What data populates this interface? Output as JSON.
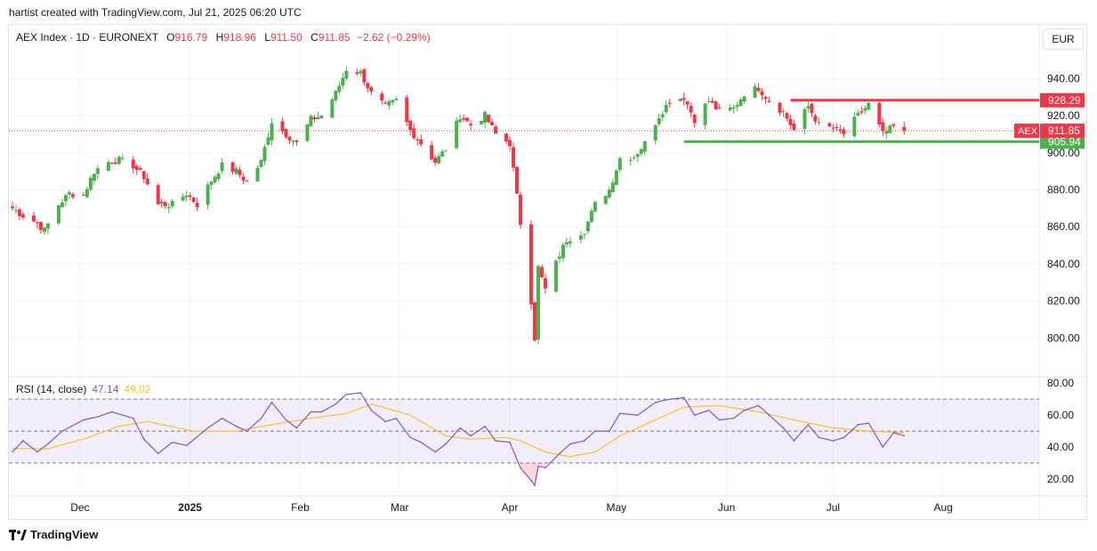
{
  "caption": "hartist created with TradingView.com, Jul 21, 2025 06:20 UTC",
  "legend": {
    "symbol": "AEX Index · 1D · EURONEXT",
    "o_label": "O",
    "o_value": "916.79",
    "h_label": "H",
    "h_value": "918.96",
    "l_label": "L",
    "l_value": "911.50",
    "c_label": "C",
    "c_value": "911.85",
    "change": "−2.62 (−0.29%)"
  },
  "rsi_legend": {
    "label": "RSI (14, close)",
    "rsi": "47.14",
    "ma": "49.02"
  },
  "currency_button": "EUR",
  "footer": {
    "logo_text": "TradingView",
    "logo_icon": "tradingview-logo-icon"
  },
  "colors": {
    "up": "#4caf50",
    "down": "#f23645",
    "rsi": "#7e57c2",
    "rsi_ma": "#f7c428",
    "resistance": "#f23645",
    "support": "#4caf50",
    "rsi_band": "#7e57c2"
  },
  "chart_data": [
    {
      "type": "candlestick",
      "title": "AEX Index · 1D · EURONEXT",
      "ylim": [
        780,
        950
      ],
      "y_ticks": [
        "940.00",
        "920.00",
        "900.00",
        "880.00",
        "860.00",
        "840.00",
        "820.00",
        "800.00"
      ],
      "x_ticks": [
        "Dec",
        "2025",
        "Feb",
        "Mar",
        "Apr",
        "May",
        "Jun",
        "Jul",
        "Aug"
      ],
      "last_price": {
        "label": "AEX",
        "value": 911.85,
        "text": "911.85"
      },
      "horizontal_levels": [
        {
          "value": 928.29,
          "text": "928.29",
          "role": "resistance",
          "from": "2025-06-19"
        },
        {
          "value": 905.94,
          "text": "905.94",
          "role": "support",
          "from": "2025-05-20"
        }
      ],
      "series": [
        {
          "name": "AEX",
          "close_path": [
            {
              "date": "2024-11-12",
              "close": 870
            },
            {
              "date": "2024-11-15",
              "close": 866
            },
            {
              "date": "2024-11-19",
              "close": 862
            },
            {
              "date": "2024-11-21",
              "close": 858
            },
            {
              "date": "2024-11-25",
              "close": 872
            },
            {
              "date": "2024-11-28",
              "close": 878
            },
            {
              "date": "2024-12-02",
              "close": 877
            },
            {
              "date": "2024-12-05",
              "close": 890
            },
            {
              "date": "2024-12-09",
              "close": 895
            },
            {
              "date": "2024-12-12",
              "close": 896
            },
            {
              "date": "2024-12-16",
              "close": 893
            },
            {
              "date": "2024-12-19",
              "close": 887
            },
            {
              "date": "2024-12-23",
              "close": 872
            },
            {
              "date": "2024-12-27",
              "close": 872
            },
            {
              "date": "2024-12-31",
              "close": 878
            },
            {
              "date": "2025-01-03",
              "close": 872
            },
            {
              "date": "2025-01-07",
              "close": 885
            },
            {
              "date": "2025-01-10",
              "close": 893
            },
            {
              "date": "2025-01-14",
              "close": 890
            },
            {
              "date": "2025-01-17",
              "close": 884
            },
            {
              "date": "2025-01-21",
              "close": 895
            },
            {
              "date": "2025-01-24",
              "close": 917
            },
            {
              "date": "2025-01-28",
              "close": 910
            },
            {
              "date": "2025-01-31",
              "close": 905
            },
            {
              "date": "2025-02-04",
              "close": 918
            },
            {
              "date": "2025-02-07",
              "close": 920
            },
            {
              "date": "2025-02-11",
              "close": 932
            },
            {
              "date": "2025-02-14",
              "close": 945
            },
            {
              "date": "2025-02-18",
              "close": 943
            },
            {
              "date": "2025-02-21",
              "close": 932
            },
            {
              "date": "2025-02-25",
              "close": 925
            },
            {
              "date": "2025-02-28",
              "close": 928
            },
            {
              "date": "2025-03-04",
              "close": 912
            },
            {
              "date": "2025-03-07",
              "close": 905
            },
            {
              "date": "2025-03-11",
              "close": 895
            },
            {
              "date": "2025-03-14",
              "close": 902
            },
            {
              "date": "2025-03-18",
              "close": 920
            },
            {
              "date": "2025-03-21",
              "close": 915
            },
            {
              "date": "2025-03-25",
              "close": 920
            },
            {
              "date": "2025-03-28",
              "close": 910
            },
            {
              "date": "2025-04-01",
              "close": 905
            },
            {
              "date": "2025-04-04",
              "close": 862
            },
            {
              "date": "2025-04-07",
              "close": 820
            },
            {
              "date": "2025-04-08",
              "close": 800
            },
            {
              "date": "2025-04-09",
              "close": 838
            },
            {
              "date": "2025-04-11",
              "close": 826
            },
            {
              "date": "2025-04-15",
              "close": 845
            },
            {
              "date": "2025-04-17",
              "close": 853
            },
            {
              "date": "2025-04-22",
              "close": 858
            },
            {
              "date": "2025-04-25",
              "close": 872
            },
            {
              "date": "2025-04-29",
              "close": 880
            },
            {
              "date": "2025-05-02",
              "close": 897
            },
            {
              "date": "2025-05-06",
              "close": 898
            },
            {
              "date": "2025-05-09",
              "close": 905
            },
            {
              "date": "2025-05-13",
              "close": 920
            },
            {
              "date": "2025-05-16",
              "close": 928
            },
            {
              "date": "2025-05-20",
              "close": 930
            },
            {
              "date": "2025-05-23",
              "close": 918
            },
            {
              "date": "2025-05-27",
              "close": 928
            },
            {
              "date": "2025-05-30",
              "close": 922
            },
            {
              "date": "2025-06-03",
              "close": 924
            },
            {
              "date": "2025-06-06",
              "close": 932
            },
            {
              "date": "2025-06-10",
              "close": 935
            },
            {
              "date": "2025-06-13",
              "close": 928
            },
            {
              "date": "2025-06-17",
              "close": 922
            },
            {
              "date": "2025-06-20",
              "close": 912
            },
            {
              "date": "2025-06-24",
              "close": 925
            },
            {
              "date": "2025-06-27",
              "close": 915
            },
            {
              "date": "2025-07-01",
              "close": 913
            },
            {
              "date": "2025-07-04",
              "close": 910
            },
            {
              "date": "2025-07-08",
              "close": 920
            },
            {
              "date": "2025-07-11",
              "close": 926
            },
            {
              "date": "2025-07-15",
              "close": 910
            },
            {
              "date": "2025-07-18",
              "close": 914
            },
            {
              "date": "2025-07-21",
              "close": 911.85
            }
          ]
        }
      ]
    },
    {
      "type": "line",
      "title": "RSI (14, close)",
      "ylim": [
        10,
        80
      ],
      "y_ticks": [
        "80.00",
        "60.00",
        "40.00",
        "20.00"
      ],
      "bands": {
        "upper": 70,
        "middle": 50,
        "lower": 30
      },
      "series": [
        {
          "name": "RSI",
          "points": [
            {
              "date": "2024-11-12",
              "value": 37
            },
            {
              "date": "2024-11-15",
              "value": 44
            },
            {
              "date": "2024-11-19",
              "value": 37
            },
            {
              "date": "2024-11-22",
              "value": 42
            },
            {
              "date": "2024-11-26",
              "value": 50
            },
            {
              "date": "2024-12-02",
              "value": 57
            },
            {
              "date": "2024-12-06",
              "value": 59
            },
            {
              "date": "2024-12-10",
              "value": 62
            },
            {
              "date": "2024-12-16",
              "value": 58
            },
            {
              "date": "2024-12-19",
              "value": 45
            },
            {
              "date": "2024-12-23",
              "value": 36
            },
            {
              "date": "2024-12-27",
              "value": 43
            },
            {
              "date": "2024-12-31",
              "value": 41
            },
            {
              "date": "2025-01-06",
              "value": 52
            },
            {
              "date": "2025-01-10",
              "value": 58
            },
            {
              "date": "2025-01-14",
              "value": 53
            },
            {
              "date": "2025-01-17",
              "value": 50
            },
            {
              "date": "2025-01-21",
              "value": 58
            },
            {
              "date": "2025-01-24",
              "value": 68
            },
            {
              "date": "2025-01-28",
              "value": 57
            },
            {
              "date": "2025-01-31",
              "value": 52
            },
            {
              "date": "2025-02-04",
              "value": 62
            },
            {
              "date": "2025-02-07",
              "value": 62
            },
            {
              "date": "2025-02-11",
              "value": 67
            },
            {
              "date": "2025-02-14",
              "value": 73
            },
            {
              "date": "2025-02-18",
              "value": 74
            },
            {
              "date": "2025-02-21",
              "value": 63
            },
            {
              "date": "2025-02-25",
              "value": 56
            },
            {
              "date": "2025-02-28",
              "value": 58
            },
            {
              "date": "2025-03-04",
              "value": 46
            },
            {
              "date": "2025-03-07",
              "value": 43
            },
            {
              "date": "2025-03-11",
              "value": 37
            },
            {
              "date": "2025-03-14",
              "value": 42
            },
            {
              "date": "2025-03-18",
              "value": 52
            },
            {
              "date": "2025-03-21",
              "value": 47
            },
            {
              "date": "2025-03-25",
              "value": 53
            },
            {
              "date": "2025-03-28",
              "value": 44
            },
            {
              "date": "2025-04-01",
              "value": 43
            },
            {
              "date": "2025-04-04",
              "value": 27
            },
            {
              "date": "2025-04-07",
              "value": 19
            },
            {
              "date": "2025-04-08",
              "value": 16
            },
            {
              "date": "2025-04-09",
              "value": 28
            },
            {
              "date": "2025-04-11",
              "value": 27
            },
            {
              "date": "2025-04-15",
              "value": 36
            },
            {
              "date": "2025-04-18",
              "value": 42
            },
            {
              "date": "2025-04-22",
              "value": 44
            },
            {
              "date": "2025-04-25",
              "value": 50
            },
            {
              "date": "2025-04-29",
              "value": 50
            },
            {
              "date": "2025-05-02",
              "value": 61
            },
            {
              "date": "2025-05-07",
              "value": 60
            },
            {
              "date": "2025-05-12",
              "value": 68
            },
            {
              "date": "2025-05-16",
              "value": 70
            },
            {
              "date": "2025-05-20",
              "value": 71
            },
            {
              "date": "2025-05-23",
              "value": 60
            },
            {
              "date": "2025-05-27",
              "value": 63
            },
            {
              "date": "2025-05-30",
              "value": 57
            },
            {
              "date": "2025-06-03",
              "value": 58
            },
            {
              "date": "2025-06-06",
              "value": 63
            },
            {
              "date": "2025-06-10",
              "value": 66
            },
            {
              "date": "2025-06-13",
              "value": 60
            },
            {
              "date": "2025-06-17",
              "value": 52
            },
            {
              "date": "2025-06-20",
              "value": 44
            },
            {
              "date": "2025-06-24",
              "value": 54
            },
            {
              "date": "2025-06-27",
              "value": 46
            },
            {
              "date": "2025-07-01",
              "value": 44
            },
            {
              "date": "2025-07-04",
              "value": 46
            },
            {
              "date": "2025-07-08",
              "value": 54
            },
            {
              "date": "2025-07-11",
              "value": 55
            },
            {
              "date": "2025-07-15",
              "value": 40
            },
            {
              "date": "2025-07-18",
              "value": 49
            },
            {
              "date": "2025-07-21",
              "value": 47.14
            }
          ]
        },
        {
          "name": "RSI-based MA",
          "points": [
            {
              "date": "2024-11-12",
              "value": 39
            },
            {
              "date": "2024-11-22",
              "value": 39
            },
            {
              "date": "2024-12-02",
              "value": 45
            },
            {
              "date": "2024-12-12",
              "value": 53
            },
            {
              "date": "2024-12-20",
              "value": 56
            },
            {
              "date": "2025-01-02",
              "value": 50
            },
            {
              "date": "2025-01-14",
              "value": 50
            },
            {
              "date": "2025-01-24",
              "value": 54
            },
            {
              "date": "2025-02-04",
              "value": 58
            },
            {
              "date": "2025-02-14",
              "value": 61
            },
            {
              "date": "2025-02-21",
              "value": 67
            },
            {
              "date": "2025-03-04",
              "value": 60
            },
            {
              "date": "2025-03-14",
              "value": 47
            },
            {
              "date": "2025-03-21",
              "value": 45
            },
            {
              "date": "2025-03-31",
              "value": 46
            },
            {
              "date": "2025-04-04",
              "value": 44
            },
            {
              "date": "2025-04-11",
              "value": 37
            },
            {
              "date": "2025-04-18",
              "value": 34
            },
            {
              "date": "2025-04-25",
              "value": 37
            },
            {
              "date": "2025-05-02",
              "value": 47
            },
            {
              "date": "2025-05-12",
              "value": 57
            },
            {
              "date": "2025-05-20",
              "value": 65
            },
            {
              "date": "2025-05-30",
              "value": 66
            },
            {
              "date": "2025-06-10",
              "value": 62
            },
            {
              "date": "2025-06-20",
              "value": 57
            },
            {
              "date": "2025-07-01",
              "value": 52
            },
            {
              "date": "2025-07-11",
              "value": 50
            },
            {
              "date": "2025-07-21",
              "value": 49.02
            }
          ]
        }
      ]
    }
  ]
}
